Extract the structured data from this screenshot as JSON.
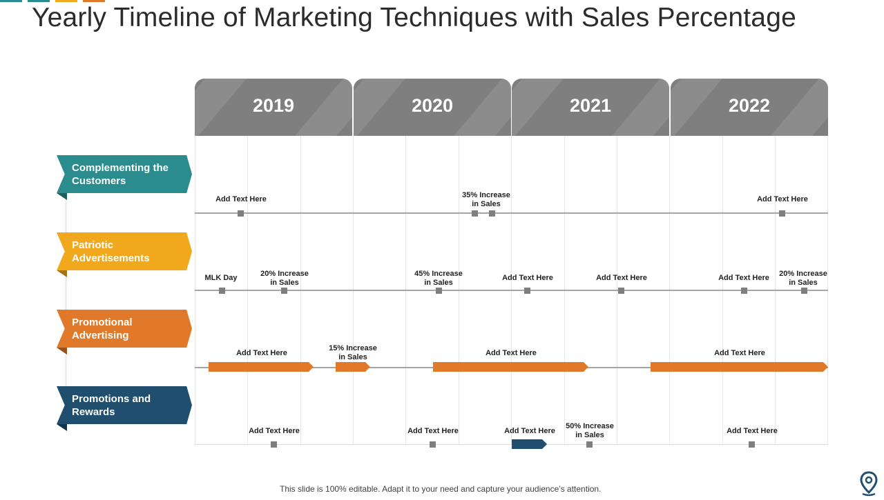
{
  "title": "Yearly Timeline of Marketing Techniques with Sales Percentage",
  "accent_colors": [
    "#2a8c8c",
    "#2a8c8c",
    "#f2a81c",
    "#e07a2a"
  ],
  "years": [
    "2019",
    "2020",
    "2021",
    "2022"
  ],
  "rows": [
    {
      "label": "Complementing the Customers",
      "color": "#2a8c8c",
      "shadow": "#1d5f5f"
    },
    {
      "label": "Patriotic Advertisements",
      "color": "#f2a81c",
      "shadow": "#a87310"
    },
    {
      "label": "Promotional Advertising",
      "color": "#e07a2a",
      "shadow": "#9a5017"
    },
    {
      "label": "Promotions and Rewards",
      "color": "#1f4e6e",
      "shadow": "#143448"
    }
  ],
  "row1_items": [
    "Add Text Here",
    "35% Increase\nin Sales",
    "Add Text Here"
  ],
  "row2_items": [
    "MLK Day",
    "20% Increase\nin Sales",
    "45% Increase\nin Sales",
    "Add Text Here",
    "Add Text Here",
    "Add Text Here",
    "20% Increase\nin Sales"
  ],
  "row3_items": [
    "Add Text Here",
    "15% Increase\nin Sales",
    "Add Text Here",
    "Add Text Here"
  ],
  "row4_items": [
    "Add Text Here",
    "Add Text Here",
    "Add Text Here",
    "50% Increase\nin Sales",
    "Add Text Here"
  ],
  "footer": "This slide is 100% editable. Adapt it to your need and capture your audience’s attention.",
  "icon": "location-pin-icon"
}
